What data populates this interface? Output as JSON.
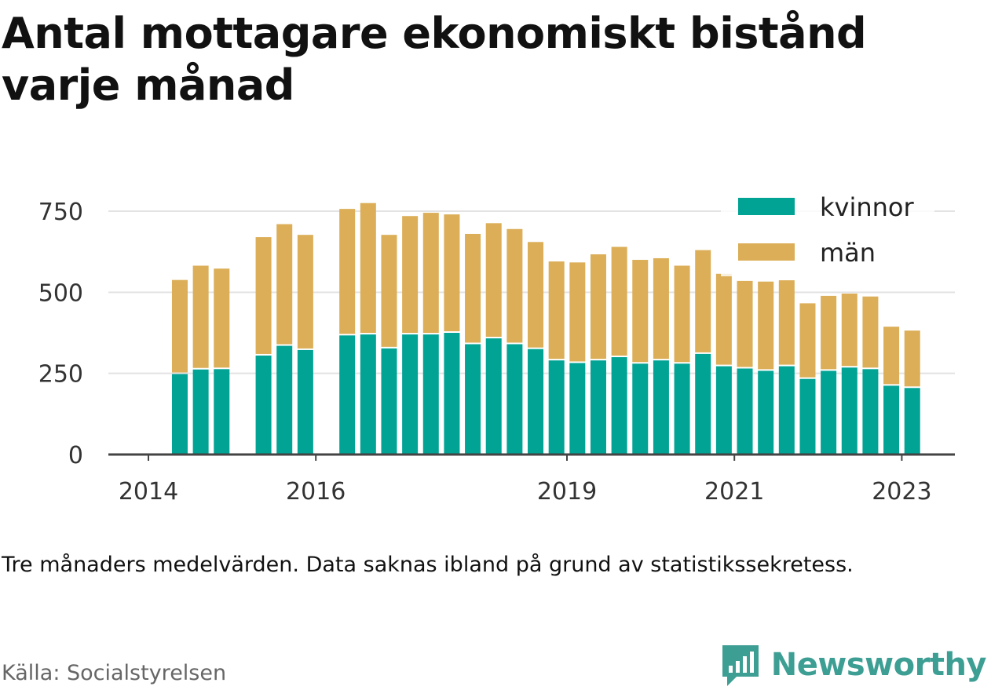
{
  "title": "Antal mottagare ekonomiskt bistånd varje månad",
  "note": "Tre månaders medelvärden. Data saknas ibland på grund av statistikssekretess.",
  "source": "Källa: Socialstyrelsen",
  "brand": {
    "name": "Newsworthy",
    "icon": "newsworthy-logo-icon",
    "color": "#3d9e94"
  },
  "colors": {
    "kvinnor": "#00a394",
    "man": "#dbae57",
    "grid": "#e3e3e3",
    "axis": "#444444"
  },
  "chart_data": {
    "type": "bar",
    "stacked": true,
    "title": "",
    "xlabel": "",
    "ylabel": "",
    "ylim": [
      0,
      760
    ],
    "yticks": [
      0,
      250,
      500,
      750
    ],
    "xticks": [
      {
        "label": "2014",
        "x": 2014.0
      },
      {
        "label": "2016",
        "x": 2016.0
      },
      {
        "label": "2019",
        "x": 2019.0
      },
      {
        "label": "2021",
        "x": 2021.0
      },
      {
        "label": "2023",
        "x": 2023.0
      }
    ],
    "legend": {
      "placement": "top-right"
    },
    "grid": true,
    "x": [
      2014.375,
      2014.625,
      2014.875,
      2015.375,
      2015.625,
      2015.875,
      2016.375,
      2016.625,
      2016.875,
      2017.125,
      2017.375,
      2017.625,
      2017.875,
      2018.125,
      2018.375,
      2018.625,
      2018.875,
      2019.125,
      2019.375,
      2019.625,
      2019.875,
      2020.125,
      2020.375,
      2020.625,
      2020.875,
      2021.125,
      2021.375,
      2021.625,
      2021.875,
      2022.125,
      2022.375,
      2022.625,
      2022.875,
      2023.125
    ],
    "series": [
      {
        "name": "kvinnor",
        "values": [
          248,
          262,
          263,
          305,
          335,
          322,
          367,
          370,
          327,
          370,
          370,
          375,
          340,
          358,
          340,
          325,
          290,
          282,
          290,
          300,
          280,
          290,
          280,
          310,
          272,
          265,
          258,
          272,
          233,
          258,
          268,
          263,
          212,
          205
        ]
      },
      {
        "name": "män",
        "values": [
          290,
          320,
          310,
          365,
          375,
          355,
          390,
          405,
          350,
          365,
          375,
          365,
          340,
          355,
          355,
          330,
          305,
          310,
          327,
          340,
          320,
          315,
          302,
          320,
          285,
          270,
          275,
          265,
          233,
          231,
          228,
          224,
          182,
          177
        ]
      }
    ]
  }
}
